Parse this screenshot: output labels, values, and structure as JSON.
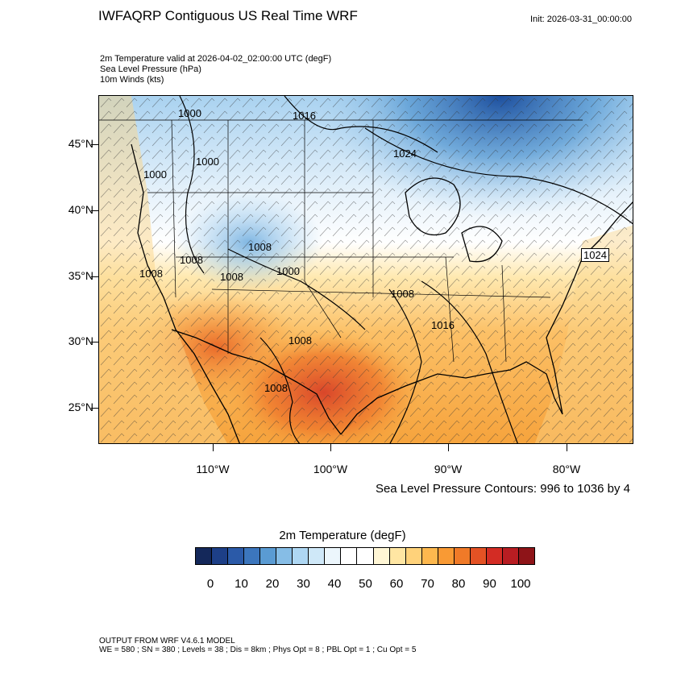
{
  "header": {
    "title": "IWFAQRP Contiguous US Real Time WRF",
    "init": "Init: 2026-03-31_00:00:00",
    "subtitle_lines": [
      "2m Temperature valid at 2026-04-02_02:00:00 UTC   (degF)",
      "Sea Level Pressure   (hPa)",
      "10m Winds   (kts)"
    ]
  },
  "map": {
    "lat_labels": [
      "45°N",
      "40°N",
      "35°N",
      "30°N",
      "25°N"
    ],
    "lon_labels": [
      "110°W",
      "100°W",
      "90°W",
      "80°W"
    ],
    "pressure_labels": [
      "1000",
      "1016",
      "1000",
      "1000",
      "1024",
      "1008",
      "1008",
      "1008",
      "1008",
      "1000",
      "1024",
      "1008",
      "1016",
      "1008",
      "1008"
    ],
    "colors": {
      "cold": "#1e4fa0",
      "cool": "#8fc6ec",
      "neutral": "#ffffff",
      "warm": "#f9b446",
      "hot": "#d9462a"
    }
  },
  "contour_note": "Sea Level Pressure Contours: 996 to 1036 by 4",
  "colorbar": {
    "title": "2m Temperature  (degF)",
    "labels": [
      "0",
      "10",
      "20",
      "30",
      "40",
      "50",
      "60",
      "70",
      "80",
      "90",
      "100"
    ],
    "colors": [
      "#14285a",
      "#1d3f87",
      "#2b5aa8",
      "#3c76bd",
      "#5a9bd3",
      "#86bde6",
      "#aed7f3",
      "#cfe8f8",
      "#ecf6fc",
      "#ffffff",
      "#ffffff",
      "#fff6d5",
      "#ffe6a3",
      "#ffd27a",
      "#fdb84e",
      "#f99a34",
      "#f07a28",
      "#e45224",
      "#d32c24",
      "#b81d22",
      "#8e1418"
    ]
  },
  "footer": {
    "line1": "OUTPUT FROM WRF V4.6.1 MODEL",
    "line2": "WE = 580 ; SN = 380 ; Levels = 38 ; Dis = 8km ; Phys Opt = 8 ; PBL Opt = 1 ; Cu Opt = 5"
  }
}
